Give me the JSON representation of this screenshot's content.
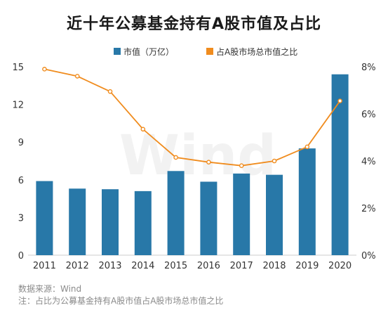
{
  "title": "近十年公募基金持有A股市值及占比",
  "watermark": "Wind",
  "footnotes": {
    "source": "数据来源：Wind",
    "note": "注：占比为公募基金持有A股市值占A股市场总市值之比"
  },
  "colors": {
    "bar": "#2878a8",
    "line": "#f08c1e",
    "text": "#333333",
    "axis": "#cccccc"
  },
  "chart_data": {
    "type": "bar",
    "title": "近十年公募基金持有A股市值及占比",
    "categories": [
      "2011",
      "2012",
      "2013",
      "2014",
      "2015",
      "2016",
      "2017",
      "2018",
      "2019",
      "2020"
    ],
    "series": [
      {
        "name": "市值（万亿）",
        "type": "bar",
        "axis": "left",
        "values": [
          5.9,
          5.3,
          5.25,
          5.1,
          6.7,
          5.85,
          6.5,
          6.4,
          8.5,
          14.4
        ]
      },
      {
        "name": "占A股市场总市值之比",
        "type": "line",
        "axis": "right",
        "values": [
          7.9,
          7.6,
          6.95,
          5.35,
          4.15,
          3.95,
          3.8,
          4.0,
          4.6,
          6.55
        ]
      }
    ],
    "ylim_left": [
      0,
      15
    ],
    "yticks_left": [
      0,
      3,
      6,
      9,
      12,
      15
    ],
    "ylim_right": [
      0,
      8
    ],
    "yticks_right": [
      "0%",
      "2%",
      "4%",
      "6%",
      "8%"
    ],
    "legend": "top-center",
    "grid": false
  }
}
